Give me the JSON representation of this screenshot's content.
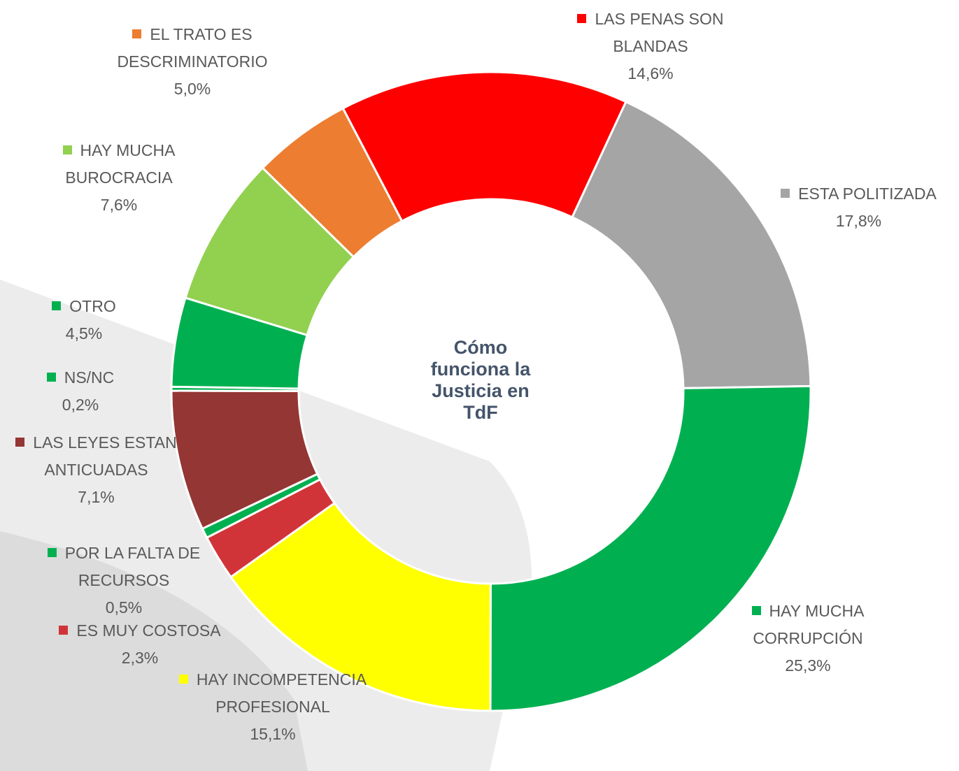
{
  "chart_data": {
    "type": "donut",
    "title": "Cómo funciona la Justicia en TdF",
    "categories": [
      "LAS PENAS SON BLANDAS",
      "ESTA POLITIZADA",
      "HAY MUCHA CORRUPCIÓN",
      "HAY INCOMPETENCIA PROFESIONAL",
      "ES MUY COSTOSA",
      "POR LA FALTA DE RECURSOS",
      "LAS LEYES ESTAN ANTICUADAS",
      "NS/NC",
      "OTRO",
      "HAY MUCHA BUROCRACIA",
      "EL TRATO ES DESCRIMINATORIO"
    ],
    "values": [
      14.6,
      17.8,
      25.3,
      15.1,
      2.3,
      0.5,
      7.1,
      0.2,
      4.5,
      7.6,
      5.0
    ],
    "value_labels": [
      "14,6%",
      "17,8%",
      "25,3%",
      "15,1%",
      "2,3%",
      "0,5%",
      "7,1%",
      "0,2%",
      "4,5%",
      "7,6%",
      "5,0%"
    ],
    "colors": [
      "#ff0000",
      "#a5a5a5",
      "#00b050",
      "#ffff00",
      "#d13438",
      "#00b050",
      "#943634",
      "#00b050",
      "#00b050",
      "#92d050",
      "#ed7d31"
    ]
  }
}
